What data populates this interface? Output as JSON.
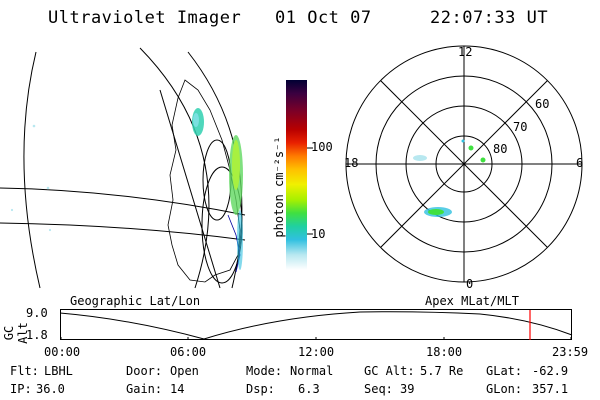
{
  "header": {
    "title": "Ultraviolet Imager",
    "date": "01 Oct 07",
    "time": "22:07:33 UT"
  },
  "colorbar": {
    "unit_label": "photon cm⁻²s⁻¹",
    "tick_labels": [
      "100",
      "10"
    ],
    "colors": [
      "#000033",
      "#3a0040",
      "#7a0028",
      "#b80000",
      "#e82000",
      "#ff7a00",
      "#ffc000",
      "#f0f000",
      "#a8f000",
      "#40e040",
      "#20d0a0",
      "#30c0e0",
      "#b8e8f0",
      "#ffffff"
    ]
  },
  "polar_plot": {
    "mlt_labels": {
      "top": "12",
      "left": "18",
      "right": "6",
      "bottom": "0"
    },
    "lat_labels": [
      "60",
      "70",
      "80"
    ]
  },
  "panel_labels": {
    "left": "Geographic Lat/Lon",
    "right": "Apex MLat/MLT"
  },
  "altitude_plot": {
    "ylabel": "GC Alt",
    "yticks": [
      "9.0",
      "1.8"
    ],
    "xticks": [
      "00:00",
      "06:00",
      "12:00",
      "18:00",
      "23:59"
    ],
    "marker_color": "#ff0000"
  },
  "footer": {
    "row1": [
      {
        "key": "Flt:",
        "value": "LBHL"
      },
      {
        "key": "Door:",
        "value": "Open"
      },
      {
        "key": "Mode:",
        "value": "Normal"
      },
      {
        "key": "GC Alt:",
        "value": "5.7 Re"
      },
      {
        "key": "GLat:",
        "value": "-62.9"
      }
    ],
    "row2": [
      {
        "key": "IP:",
        "value": "36.0"
      },
      {
        "key": "Gain:",
        "value": "14"
      },
      {
        "key": "Dsp:",
        "value": "6.3"
      },
      {
        "key": "Seq:",
        "value": "39"
      },
      {
        "key": "GLon:",
        "value": "357.1"
      }
    ]
  }
}
